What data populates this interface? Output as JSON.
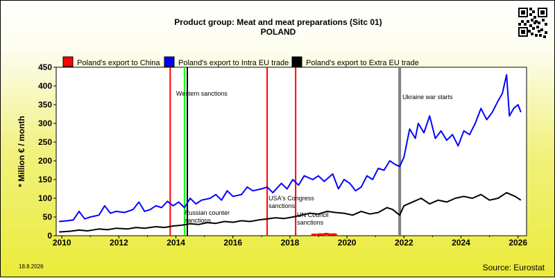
{
  "header": {
    "title": "Product group: Meat and meat preparations (Sitc 01)",
    "subtitle": "POLAND"
  },
  "footer": {
    "date": "18.8.2026",
    "source": "Source: Eurostat"
  },
  "colors": {
    "china": "#ff0000",
    "intra": "#0000ff",
    "extra": "#000000",
    "sanction_red": "#ff0000",
    "sanction_green": "#00ff00",
    "war": "#808080"
  },
  "chart_data": {
    "type": "line",
    "ylabel": "* Million € / month",
    "xlabel": "",
    "ylim": [
      0,
      450
    ],
    "xlim": [
      2009.8,
      2026.3
    ],
    "y_ticks": [
      "0",
      "50",
      "100",
      "150",
      "200",
      "250",
      "300",
      "350",
      "400",
      "450"
    ],
    "x_ticks": [
      "2010",
      "2012",
      "2014",
      "2016",
      "2018",
      "2020",
      "2022",
      "2024",
      "2026"
    ],
    "grid": false,
    "legend_position": "top",
    "series": [
      {
        "name": "Poland's export to China",
        "x": [
          2018.75,
          2018.85,
          2018.95,
          2019.05,
          2019.15,
          2019.25,
          2019.35,
          2019.45,
          2019.55,
          2019.65
        ],
        "y": [
          2,
          3,
          2,
          4,
          3,
          5,
          4,
          3,
          4,
          2
        ]
      },
      {
        "name": "Poland's export to Intra EU trade",
        "x": [
          2009.9,
          2010.2,
          2010.4,
          2010.6,
          2010.8,
          2011.0,
          2011.3,
          2011.5,
          2011.7,
          2011.9,
          2012.2,
          2012.5,
          2012.7,
          2012.9,
          2013.1,
          2013.3,
          2013.5,
          2013.7,
          2013.9,
          2014.1,
          2014.3,
          2014.5,
          2014.7,
          2014.9,
          2015.2,
          2015.4,
          2015.6,
          2015.8,
          2016.0,
          2016.3,
          2016.5,
          2016.7,
          2017.0,
          2017.2,
          2017.4,
          2017.7,
          2017.9,
          2018.1,
          2018.3,
          2018.5,
          2018.8,
          2019.0,
          2019.2,
          2019.5,
          2019.7,
          2019.9,
          2020.1,
          2020.3,
          2020.5,
          2020.7,
          2020.9,
          2021.1,
          2021.3,
          2021.5,
          2021.7,
          2021.85,
          2022.0,
          2022.2,
          2022.4,
          2022.5,
          2022.7,
          2022.9,
          2023.1,
          2023.3,
          2023.5,
          2023.7,
          2023.9,
          2024.1,
          2024.3,
          2024.5,
          2024.7,
          2024.9,
          2025.1,
          2025.3,
          2025.45,
          2025.6,
          2025.7,
          2025.85,
          2026.0,
          2026.1
        ],
        "y": [
          38,
          40,
          42,
          65,
          45,
          50,
          55,
          80,
          60,
          65,
          62,
          70,
          90,
          65,
          70,
          80,
          75,
          92,
          80,
          90,
          75,
          100,
          85,
          95,
          100,
          110,
          95,
          120,
          105,
          110,
          130,
          120,
          125,
          130,
          115,
          140,
          125,
          150,
          135,
          160,
          150,
          160,
          145,
          165,
          125,
          150,
          140,
          120,
          130,
          160,
          150,
          180,
          175,
          200,
          190,
          185,
          210,
          285,
          260,
          300,
          275,
          320,
          260,
          280,
          255,
          270,
          240,
          280,
          270,
          300,
          340,
          310,
          330,
          360,
          380,
          430,
          320,
          340,
          350,
          330
        ]
      },
      {
        "name": "Poland's export to Extra EU trade",
        "x": [
          2009.9,
          2010.3,
          2010.6,
          2010.9,
          2011.3,
          2011.6,
          2011.9,
          2012.3,
          2012.6,
          2012.9,
          2013.3,
          2013.6,
          2013.9,
          2014.2,
          2014.5,
          2014.8,
          2015.1,
          2015.4,
          2015.7,
          2016.0,
          2016.3,
          2016.6,
          2016.9,
          2017.2,
          2017.5,
          2017.8,
          2018.1,
          2018.4,
          2018.7,
          2019.0,
          2019.3,
          2019.6,
          2019.9,
          2020.2,
          2020.5,
          2020.8,
          2021.1,
          2021.4,
          2021.6,
          2021.85,
          2022.0,
          2022.3,
          2022.6,
          2022.9,
          2023.2,
          2023.5,
          2023.8,
          2024.1,
          2024.4,
          2024.7,
          2025.0,
          2025.3,
          2025.6,
          2025.9,
          2026.1
        ],
        "y": [
          10,
          12,
          15,
          13,
          18,
          16,
          20,
          18,
          22,
          20,
          24,
          22,
          26,
          28,
          32,
          30,
          35,
          33,
          38,
          36,
          40,
          38,
          42,
          45,
          48,
          46,
          50,
          55,
          60,
          58,
          65,
          62,
          60,
          55,
          65,
          58,
          62,
          75,
          70,
          55,
          80,
          90,
          100,
          85,
          95,
          90,
          100,
          105,
          100,
          110,
          95,
          100,
          115,
          105,
          95
        ]
      }
    ],
    "events": [
      {
        "x": 2014.3,
        "label": "Western sanctions",
        "color": "#00ff00"
      },
      {
        "x": 2013.8,
        "label": "",
        "color": "#ff0000"
      },
      {
        "x": 2014.4,
        "label": "Russian counter sanctions",
        "color": "#000000"
      },
      {
        "x": 2017.2,
        "label": "USA's Congress sanctions",
        "color": "#ff0000"
      },
      {
        "x": 2018.2,
        "label": "UN Council sanctions",
        "color": "#ff0000"
      },
      {
        "x": 2021.85,
        "label": "Ukraine war starts",
        "color": "#808080"
      }
    ]
  }
}
